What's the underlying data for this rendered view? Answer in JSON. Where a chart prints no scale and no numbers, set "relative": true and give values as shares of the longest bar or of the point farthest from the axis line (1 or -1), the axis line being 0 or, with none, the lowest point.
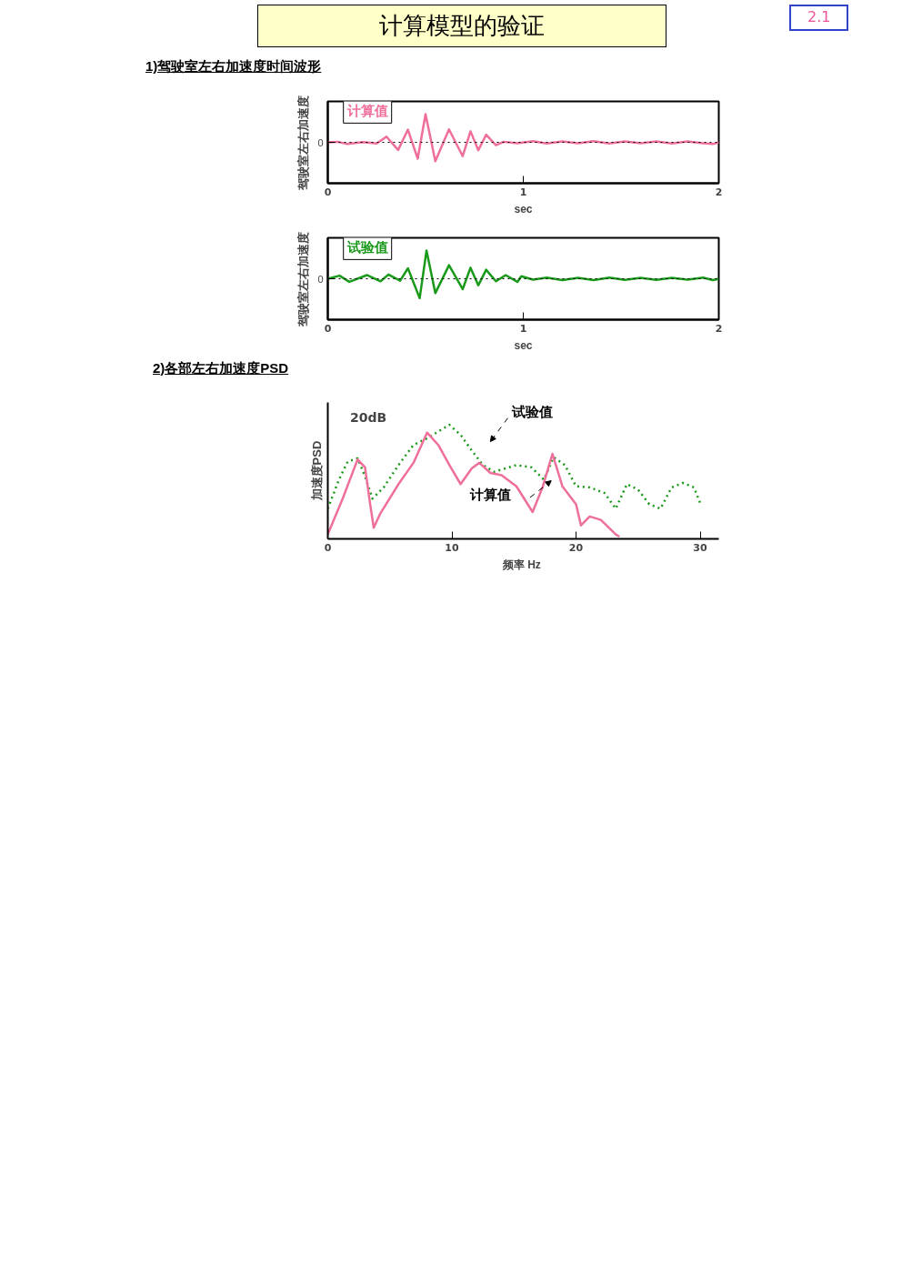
{
  "chart_data": [
    {
      "type": "line",
      "title": "计算模型的验证",
      "subtitle": "1)驾驶室左右加速度时间波形",
      "annotations": [
        "2.1"
      ],
      "xlabel": "sec",
      "ylabel": "驾驶室左右加速度",
      "relative": true,
      "xlim": [
        0,
        2
      ],
      "xticks": [
        0,
        1,
        2
      ],
      "ref_lines": [
        {
          "axis": "y",
          "value": 0,
          "label": "0",
          "line_style": "dotted",
          "color": "#000000"
        }
      ],
      "grid": false,
      "x": [
        0,
        0.05,
        0.1,
        0.18,
        0.25,
        0.3,
        0.36,
        0.41,
        0.46,
        0.5,
        0.55,
        0.62,
        0.69,
        0.73,
        0.77,
        0.81,
        0.86,
        0.9,
        0.97,
        1.05,
        1.12,
        1.2,
        1.28,
        1.36,
        1.44,
        1.52,
        1.6,
        1.68,
        1.76,
        1.84,
        1.92,
        1.97,
        2
      ],
      "series": [
        {
          "name": "计算值",
          "color": "#ef6f9c",
          "values": [
            0,
            0.02,
            -0.06,
            0.01,
            -0.04,
            0.2,
            -0.27,
            0.45,
            -0.58,
            1.0,
            -0.67,
            0.46,
            -0.49,
            0.39,
            -0.28,
            0.27,
            -0.1,
            0.02,
            -0.03,
            0.04,
            -0.04,
            0.03,
            -0.03,
            0.04,
            -0.04,
            0.03,
            -0.03,
            0.03,
            -0.04,
            0.03,
            -0.03,
            -0.06,
            0
          ]
        }
      ]
    },
    {
      "type": "line",
      "xlabel": "sec",
      "ylabel": "驾驶室左右加速度",
      "relative": true,
      "xlim": [
        0,
        2
      ],
      "xticks": [
        0,
        1,
        2
      ],
      "ref_lines": [
        {
          "axis": "y",
          "value": 0,
          "label": "0",
          "line_style": "dotted",
          "color": "#000000"
        }
      ],
      "grid": false,
      "x": [
        0,
        0.06,
        0.11,
        0.2,
        0.27,
        0.31,
        0.37,
        0.41,
        0.47,
        0.505,
        0.55,
        0.62,
        0.69,
        0.73,
        0.77,
        0.81,
        0.86,
        0.91,
        0.97,
        0.99,
        1.05,
        1.12,
        1.2,
        1.28,
        1.36,
        1.44,
        1.52,
        1.6,
        1.68,
        1.76,
        1.84,
        1.92,
        1.97,
        2
      ],
      "series": [
        {
          "name": "试验值",
          "color": "#1a9a1a",
          "values": [
            0,
            0.11,
            -0.11,
            0.13,
            -0.09,
            0.15,
            -0.07,
            0.37,
            -0.69,
            1.0,
            -0.51,
            0.48,
            -0.37,
            0.39,
            -0.23,
            0.32,
            -0.09,
            0.13,
            -0.11,
            0.09,
            -0.03,
            0.04,
            -0.05,
            0.03,
            -0.05,
            0.04,
            -0.04,
            0.03,
            -0.04,
            0.03,
            -0.03,
            0.04,
            -0.05,
            0
          ]
        }
      ]
    },
    {
      "type": "line",
      "title": "2)各部左右加速度PSD",
      "annotations": [
        "20dB"
      ],
      "xlabel": "频率  Hz",
      "ylabel": "加速度PSD",
      "relative": true,
      "xlim": [
        0,
        31.5
      ],
      "xticks": [
        0,
        10,
        20,
        30
      ],
      "grid": false,
      "series": [
        {
          "name": "试验值",
          "color": "#1a9a1a",
          "line_style": "dotted",
          "x": [
            0,
            0.9,
            1.6,
            2.4,
            3.0,
            3.6,
            4.5,
            5.7,
            6.9,
            8.0,
            8.9,
            9.8,
            10.7,
            11.6,
            12.5,
            13.4,
            15.2,
            16.4,
            17.4,
            18.2,
            19.1,
            20.0,
            21.1,
            22.3,
            23.2,
            24.1,
            25.0,
            25.9,
            26.8,
            27.7,
            28.6,
            29.5,
            30
          ],
          "values": [
            0.25,
            0.51,
            0.67,
            0.7,
            0.54,
            0.34,
            0.44,
            0.64,
            0.82,
            0.88,
            0.94,
            1.0,
            0.91,
            0.77,
            0.64,
            0.58,
            0.64,
            0.62,
            0.51,
            0.71,
            0.64,
            0.45,
            0.44,
            0.39,
            0.25,
            0.47,
            0.42,
            0.29,
            0.25,
            0.44,
            0.48,
            0.44,
            0.3
          ]
        },
        {
          "name": "计算值",
          "color": "#ef6f9c",
          "line_style": "solid",
          "x": [
            0,
            1.2,
            2.4,
            3.0,
            3.4,
            3.7,
            4.2,
            5.7,
            6.9,
            8.0,
            8.9,
            9.8,
            10.7,
            11.6,
            12.2,
            13.1,
            14.0,
            15.2,
            16.5,
            17.3,
            18.1,
            18.9,
            20.0,
            20.4,
            21.1,
            22.0,
            23.2,
            23.5
          ],
          "values": [
            0.02,
            0.34,
            0.69,
            0.62,
            0.3,
            0.08,
            0.2,
            0.47,
            0.66,
            0.93,
            0.82,
            0.64,
            0.47,
            0.61,
            0.66,
            0.57,
            0.55,
            0.45,
            0.22,
            0.44,
            0.74,
            0.45,
            0.29,
            0.1,
            0.18,
            0.15,
            0.02,
            0
          ]
        }
      ]
    }
  ]
}
